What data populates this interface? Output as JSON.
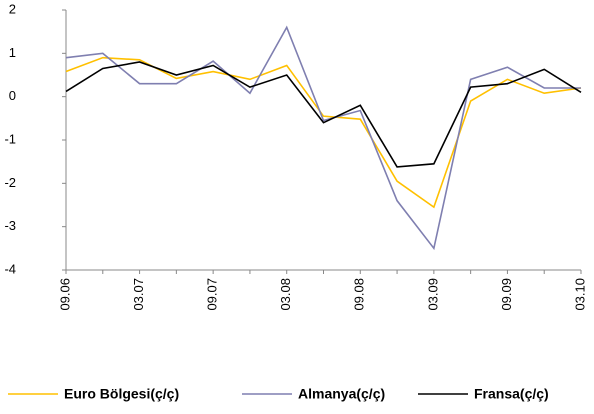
{
  "chart_data": {
    "type": "line",
    "categories": [
      "09.06",
      null,
      "03.07",
      null,
      "09.07",
      null,
      "03.08",
      null,
      "09.08",
      null,
      "03.09",
      null,
      "09.09",
      null,
      "03.10"
    ],
    "series": [
      {
        "name": "Euro Bölgesi(ç/ç)",
        "color": "#ffc000",
        "values": [
          0.58,
          0.9,
          0.85,
          0.42,
          0.58,
          0.4,
          0.72,
          -0.45,
          -0.52,
          -1.95,
          -2.55,
          -0.1,
          0.4,
          0.08,
          0.2
        ]
      },
      {
        "name": "Almanya(ç/ç)",
        "color": "#7f7fb0",
        "values": [
          0.9,
          1.0,
          0.3,
          0.3,
          0.82,
          0.08,
          1.6,
          -0.55,
          -0.32,
          -2.4,
          -3.5,
          0.4,
          0.68,
          0.2,
          0.2
        ]
      },
      {
        "name": "Fransa(ç/ç)",
        "color": "#000000",
        "values": [
          0.12,
          0.65,
          0.8,
          0.5,
          0.72,
          0.22,
          0.5,
          -0.6,
          -0.2,
          -1.62,
          -1.55,
          0.22,
          0.3,
          0.63,
          0.1
        ]
      }
    ],
    "ylim": [
      -4,
      2
    ],
    "yticks": [
      -4,
      -3,
      -2,
      -1,
      0,
      1,
      2
    ],
    "legend": "bottom",
    "grid": false
  }
}
